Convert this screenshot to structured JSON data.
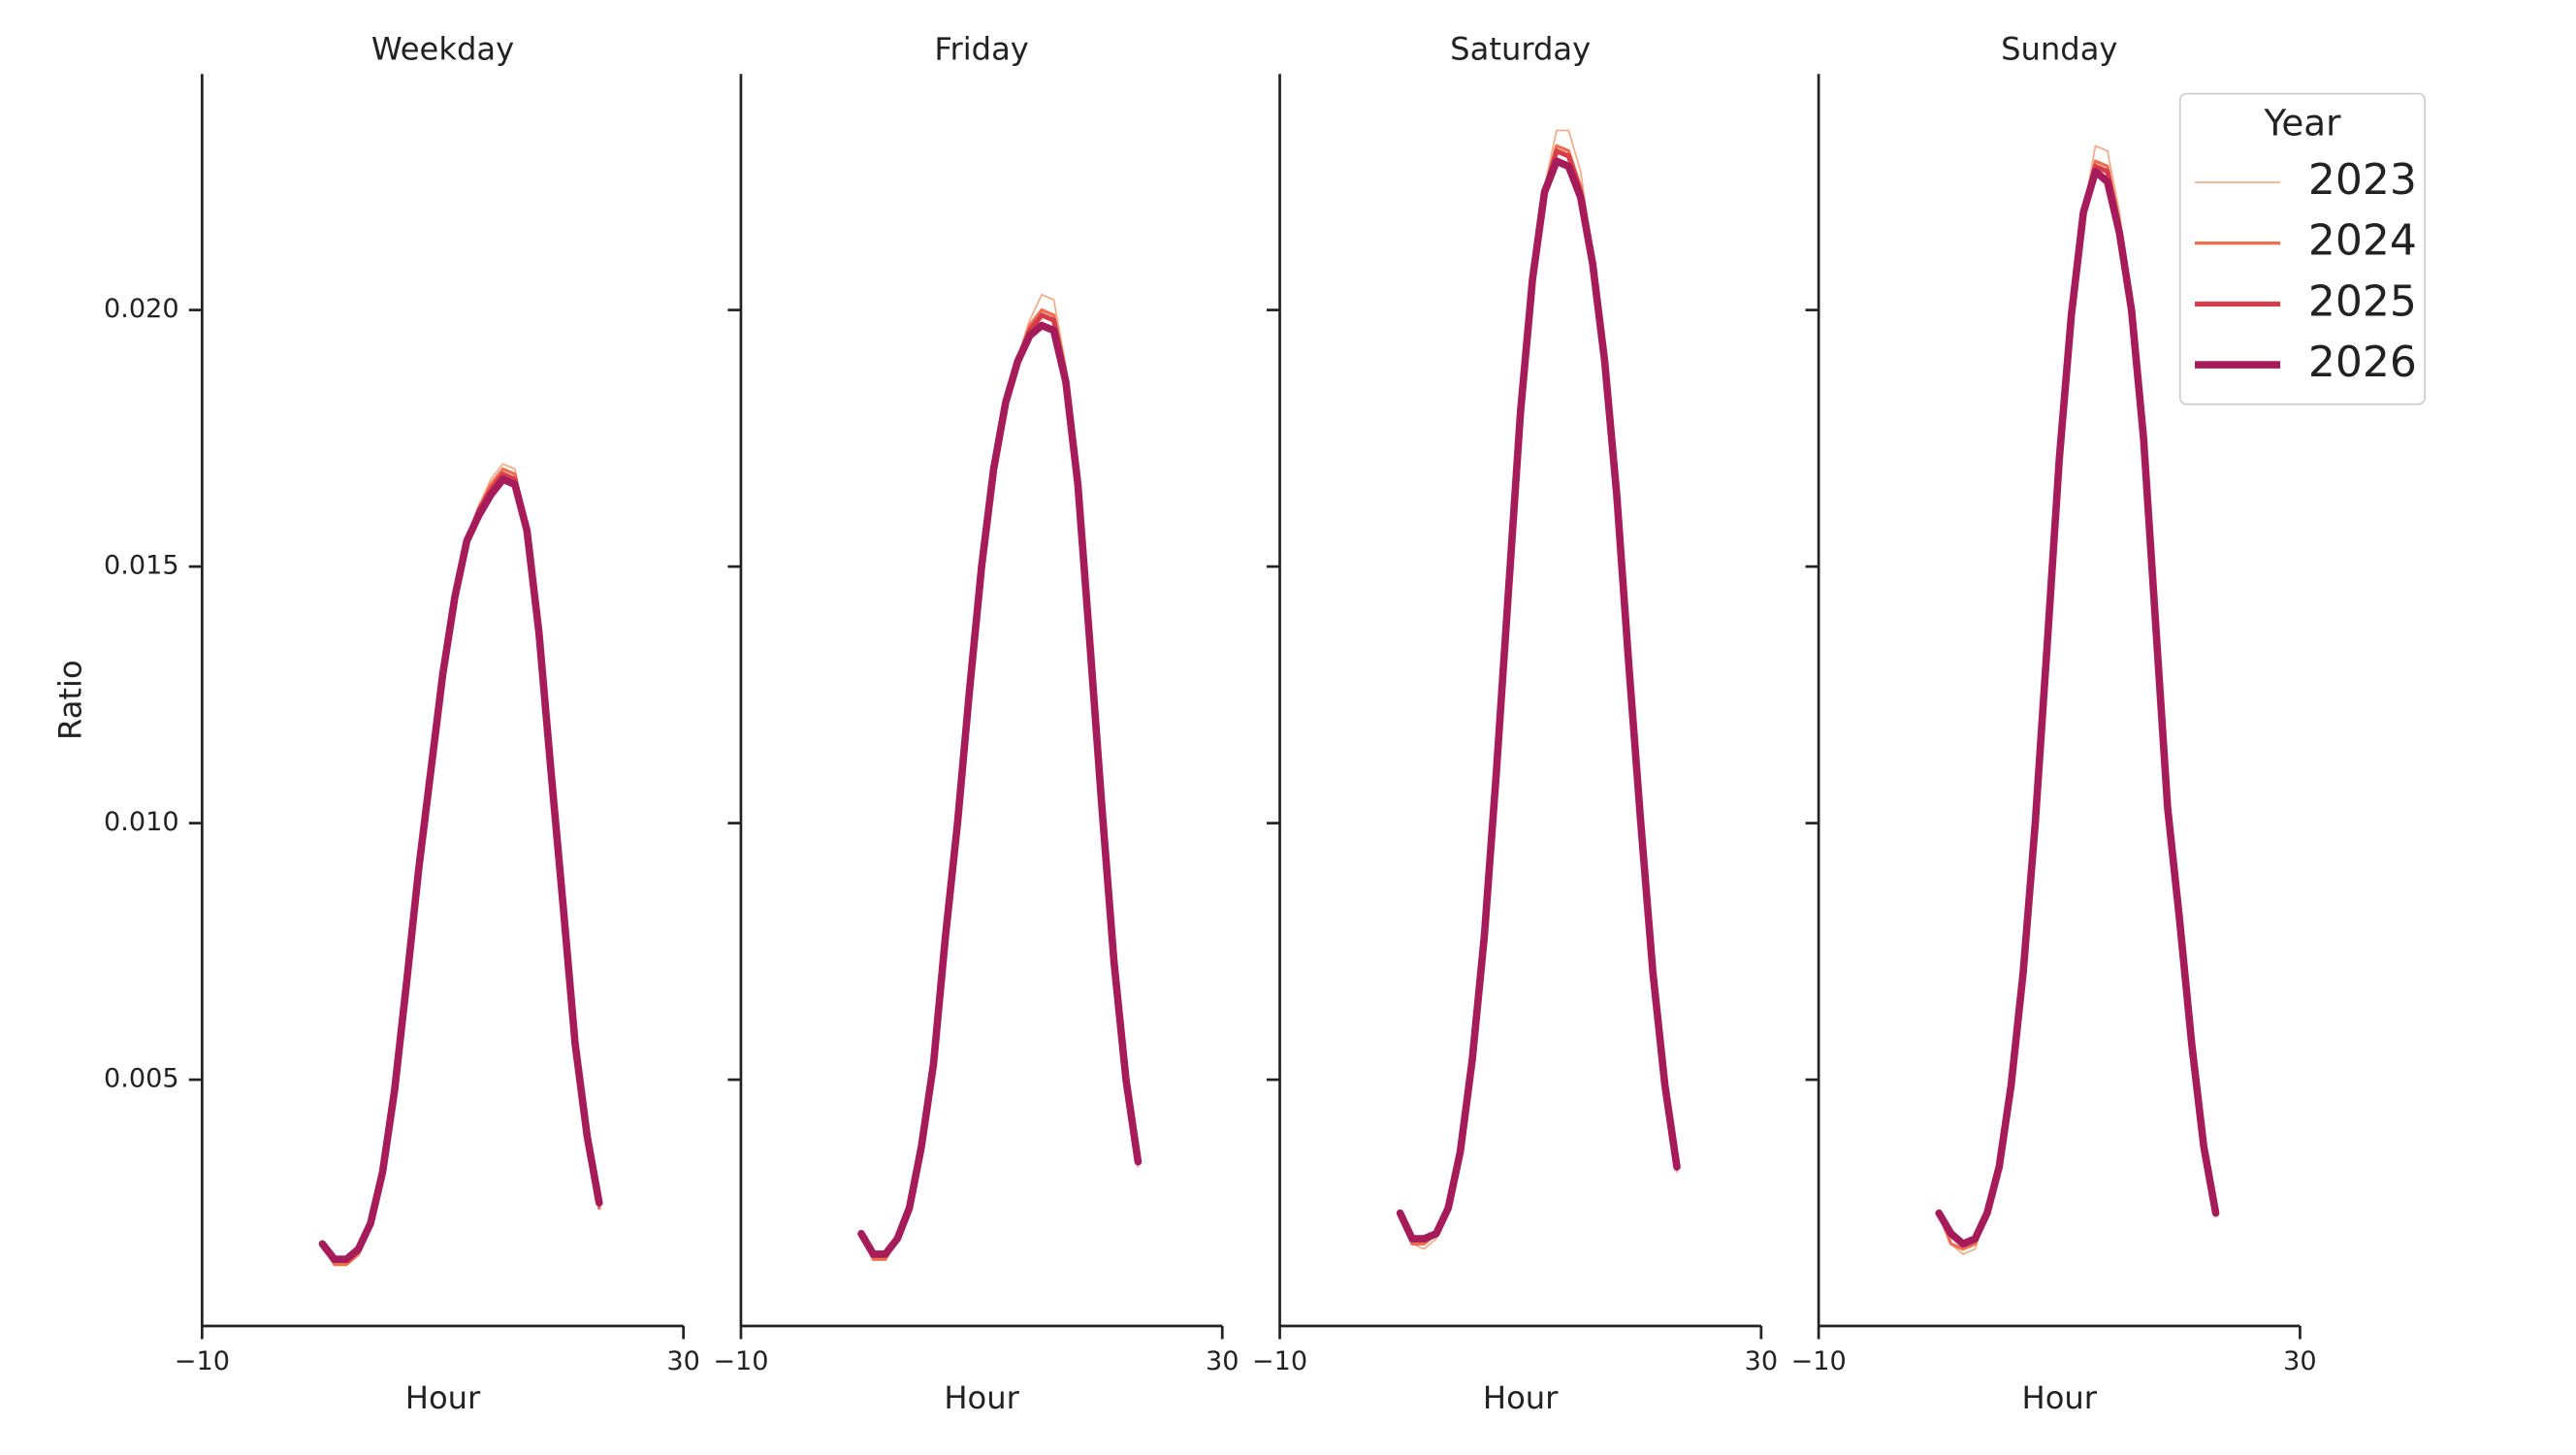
{
  "chart_data": [
    {
      "type": "line",
      "title": "Weekday",
      "xlabel": "Hour",
      "ylabel": "Ratio",
      "x": [
        0,
        1,
        2,
        3,
        4,
        5,
        6,
        7,
        8,
        9,
        10,
        11,
        12,
        13,
        14,
        15,
        16,
        17,
        18,
        19,
        20,
        21,
        22,
        23
      ],
      "xlim": [
        -10,
        30
      ],
      "xticks": [
        {
          "value": -10,
          "label": "−10"
        },
        30
      ],
      "ylim": [
        0.0002,
        0.0246
      ],
      "yticks": [
        {
          "value": 0.005,
          "label": "0.005"
        },
        {
          "value": 0.01,
          "label": "0.010"
        },
        {
          "value": 0.015,
          "label": "0.015"
        },
        {
          "value": 0.02,
          "label": "0.020"
        }
      ],
      "series": [
        {
          "name": "2023",
          "color": "#f6a883",
          "values": [
            0.0017,
            0.0014,
            0.0014,
            0.0016,
            0.0022,
            0.0032,
            0.0048,
            0.0069,
            0.0091,
            0.011,
            0.0129,
            0.0144,
            0.0155,
            0.0162,
            0.0167,
            0.017,
            0.0169,
            0.0157,
            0.0137,
            0.011,
            0.0084,
            0.0057,
            0.0039,
            0.0025
          ]
        },
        {
          "name": "2024",
          "color": "#ef6f4c",
          "values": [
            0.0018,
            0.0014,
            0.0014,
            0.0016,
            0.0022,
            0.0032,
            0.0048,
            0.0069,
            0.0091,
            0.011,
            0.0129,
            0.0144,
            0.0155,
            0.0161,
            0.0166,
            0.0169,
            0.0168,
            0.0157,
            0.0137,
            0.011,
            0.0084,
            0.0057,
            0.0039,
            0.0025
          ]
        },
        {
          "name": "2025",
          "color": "#d63c4a",
          "values": [
            0.0018,
            0.0015,
            0.0015,
            0.0017,
            0.0022,
            0.0032,
            0.0048,
            0.0069,
            0.0091,
            0.011,
            0.0129,
            0.0144,
            0.0155,
            0.0161,
            0.0165,
            0.0168,
            0.0167,
            0.0157,
            0.0137,
            0.011,
            0.0084,
            0.0057,
            0.0039,
            0.0026
          ]
        },
        {
          "name": "2026",
          "color": "#a61b5a",
          "values": [
            0.0018,
            0.0015,
            0.0015,
            0.0017,
            0.0022,
            0.0032,
            0.0048,
            0.0069,
            0.0091,
            0.011,
            0.0129,
            0.0144,
            0.0155,
            0.016,
            0.0164,
            0.0167,
            0.0166,
            0.0157,
            0.0137,
            0.011,
            0.0084,
            0.0057,
            0.0039,
            0.0026
          ]
        }
      ]
    },
    {
      "type": "line",
      "title": "Friday",
      "xlabel": "Hour",
      "x": [
        0,
        1,
        2,
        3,
        4,
        5,
        6,
        7,
        8,
        9,
        10,
        11,
        12,
        13,
        14,
        15,
        16,
        17,
        18,
        19,
        20,
        21,
        22,
        23
      ],
      "xlim": [
        -10,
        30
      ],
      "xticks": [
        {
          "value": -10,
          "label": "−10"
        },
        30
      ],
      "series": [
        {
          "name": "2023",
          "color": "#f6a883",
          "values": [
            0.002,
            0.0015,
            0.0015,
            0.0019,
            0.0025,
            0.0037,
            0.0053,
            0.0078,
            0.01,
            0.0126,
            0.015,
            0.0169,
            0.0182,
            0.0191,
            0.0198,
            0.0203,
            0.0202,
            0.0189,
            0.0166,
            0.0135,
            0.0103,
            0.0073,
            0.005,
            0.0033
          ]
        },
        {
          "name": "2024",
          "color": "#ef6f4c",
          "values": [
            0.002,
            0.0015,
            0.0015,
            0.0019,
            0.0025,
            0.0037,
            0.0053,
            0.0078,
            0.01,
            0.0126,
            0.015,
            0.0169,
            0.0182,
            0.019,
            0.0197,
            0.02,
            0.0199,
            0.0188,
            0.0166,
            0.0135,
            0.0103,
            0.0073,
            0.005,
            0.0034
          ]
        },
        {
          "name": "2025",
          "color": "#d63c4a",
          "values": [
            0.002,
            0.0016,
            0.0016,
            0.0019,
            0.0025,
            0.0037,
            0.0053,
            0.0078,
            0.01,
            0.0126,
            0.015,
            0.0169,
            0.0182,
            0.019,
            0.0196,
            0.0199,
            0.0198,
            0.0187,
            0.0166,
            0.0135,
            0.0103,
            0.0073,
            0.005,
            0.0034
          ]
        },
        {
          "name": "2026",
          "color": "#a61b5a",
          "values": [
            0.002,
            0.0016,
            0.0016,
            0.0019,
            0.0025,
            0.0037,
            0.0053,
            0.0078,
            0.01,
            0.0126,
            0.015,
            0.0169,
            0.0182,
            0.019,
            0.0195,
            0.0197,
            0.0196,
            0.0186,
            0.0166,
            0.0135,
            0.0103,
            0.0073,
            0.005,
            0.0034
          ]
        }
      ]
    },
    {
      "type": "line",
      "title": "Saturday",
      "xlabel": "Hour",
      "x": [
        0,
        1,
        2,
        3,
        4,
        5,
        6,
        7,
        8,
        9,
        10,
        11,
        12,
        13,
        14,
        15,
        16,
        17,
        18,
        19,
        20,
        21,
        22,
        23
      ],
      "xlim": [
        -10,
        30
      ],
      "xticks": [
        {
          "value": -10,
          "label": "−10"
        },
        30
      ],
      "series": [
        {
          "name": "2023",
          "color": "#f6a883",
          "values": [
            0.0024,
            0.0018,
            0.0017,
            0.0019,
            0.0025,
            0.0036,
            0.0054,
            0.0078,
            0.011,
            0.0145,
            0.018,
            0.0206,
            0.0224,
            0.0235,
            0.0235,
            0.0227,
            0.0211,
            0.019,
            0.0164,
            0.0131,
            0.01,
            0.0071,
            0.0049,
            0.0032
          ]
        },
        {
          "name": "2024",
          "color": "#ef6f4c",
          "values": [
            0.0024,
            0.0018,
            0.0018,
            0.002,
            0.0025,
            0.0036,
            0.0054,
            0.0078,
            0.011,
            0.0145,
            0.018,
            0.0206,
            0.0223,
            0.0232,
            0.0231,
            0.0224,
            0.0209,
            0.019,
            0.0164,
            0.0131,
            0.01,
            0.0071,
            0.0049,
            0.0033
          ]
        },
        {
          "name": "2025",
          "color": "#d63c4a",
          "values": [
            0.0024,
            0.0019,
            0.0019,
            0.002,
            0.0025,
            0.0036,
            0.0054,
            0.0078,
            0.011,
            0.0145,
            0.018,
            0.0206,
            0.0223,
            0.0231,
            0.023,
            0.0223,
            0.0209,
            0.019,
            0.0164,
            0.0131,
            0.01,
            0.0071,
            0.0049,
            0.0033
          ]
        },
        {
          "name": "2026",
          "color": "#a61b5a",
          "values": [
            0.0024,
            0.0019,
            0.0019,
            0.002,
            0.0025,
            0.0036,
            0.0054,
            0.0078,
            0.011,
            0.0145,
            0.018,
            0.0206,
            0.0223,
            0.0229,
            0.0228,
            0.0222,
            0.0209,
            0.019,
            0.0164,
            0.0131,
            0.01,
            0.0071,
            0.0049,
            0.0033
          ]
        }
      ]
    },
    {
      "type": "line",
      "title": "Sunday",
      "xlabel": "Hour",
      "x": [
        0,
        1,
        2,
        3,
        4,
        5,
        6,
        7,
        8,
        9,
        10,
        11,
        12,
        13,
        14,
        15,
        16,
        17,
        18,
        19,
        20,
        21,
        22,
        23
      ],
      "xlim": [
        -10,
        30
      ],
      "xticks": [
        {
          "value": -10,
          "label": "−10"
        },
        30
      ],
      "legend_title": "Year",
      "legend_loc": "upper right",
      "series": [
        {
          "name": "2023",
          "color": "#f6a883",
          "values": [
            0.0024,
            0.0018,
            0.0016,
            0.0017,
            0.0024,
            0.0033,
            0.0049,
            0.0071,
            0.01,
            0.0135,
            0.0171,
            0.0199,
            0.0219,
            0.0232,
            0.0231,
            0.0219,
            0.02,
            0.0175,
            0.0139,
            0.0103,
            0.0081,
            0.0057,
            0.0037,
            0.0024
          ]
        },
        {
          "name": "2024",
          "color": "#ef6f4c",
          "values": [
            0.0024,
            0.0018,
            0.0017,
            0.0018,
            0.0024,
            0.0033,
            0.0049,
            0.0071,
            0.01,
            0.0135,
            0.0171,
            0.0199,
            0.0219,
            0.0229,
            0.0228,
            0.0217,
            0.02,
            0.0175,
            0.0139,
            0.0103,
            0.0081,
            0.0057,
            0.0037,
            0.0024
          ]
        },
        {
          "name": "2025",
          "color": "#d63c4a",
          "values": [
            0.0024,
            0.002,
            0.0018,
            0.0019,
            0.0024,
            0.0033,
            0.0049,
            0.0071,
            0.01,
            0.0135,
            0.0171,
            0.0199,
            0.0219,
            0.0228,
            0.0227,
            0.0216,
            0.02,
            0.0175,
            0.0139,
            0.0103,
            0.0081,
            0.0057,
            0.0037,
            0.0024
          ]
        },
        {
          "name": "2026",
          "color": "#a61b5a",
          "values": [
            0.0024,
            0.002,
            0.0018,
            0.0019,
            0.0024,
            0.0033,
            0.0049,
            0.0071,
            0.01,
            0.0135,
            0.0171,
            0.0199,
            0.0219,
            0.0227,
            0.0225,
            0.0215,
            0.02,
            0.0175,
            0.0139,
            0.0103,
            0.0081,
            0.0057,
            0.0037,
            0.0024
          ]
        }
      ]
    }
  ]
}
